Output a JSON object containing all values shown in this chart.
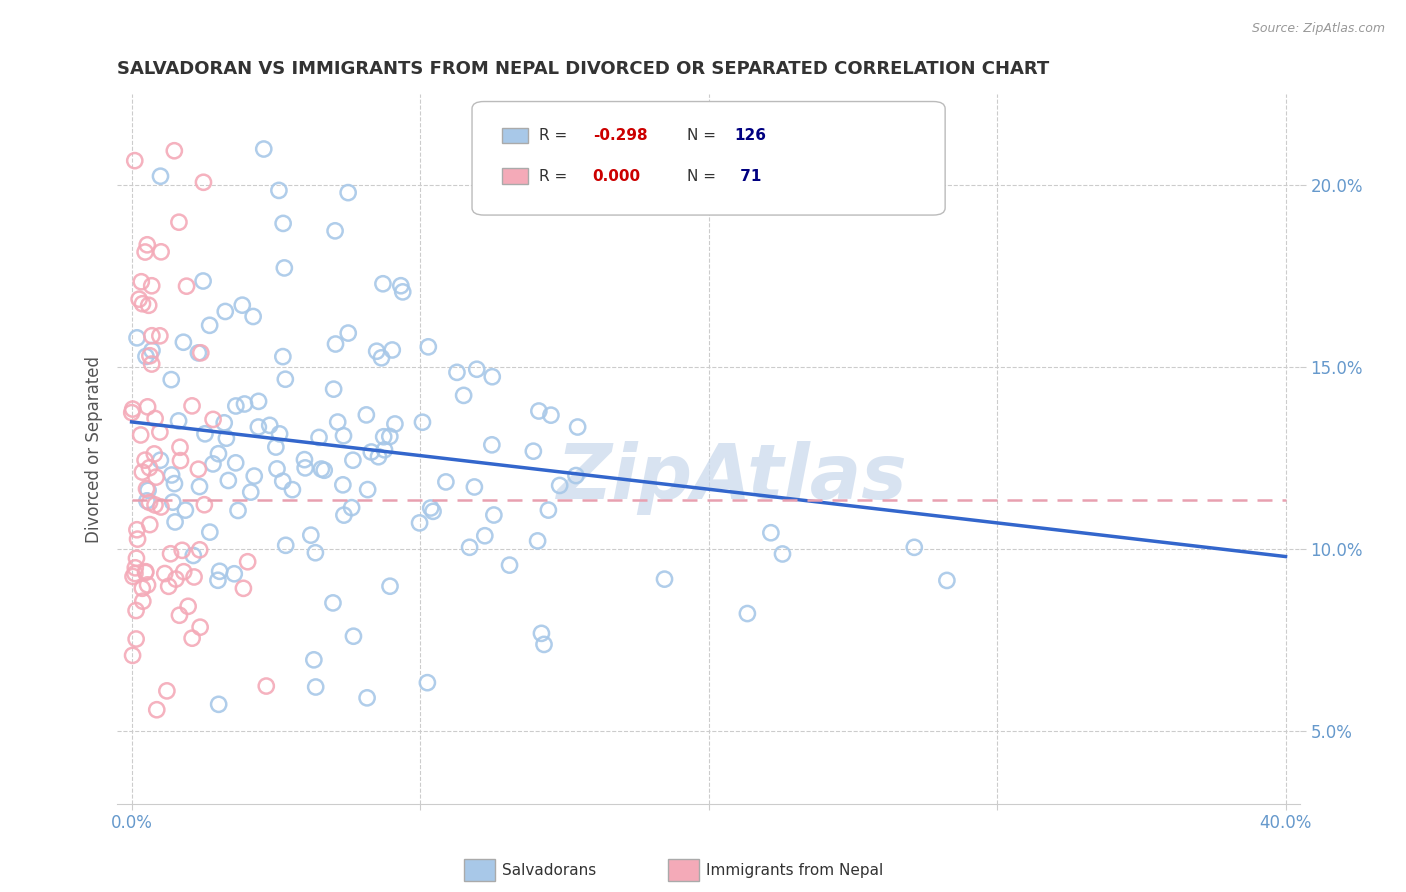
{
  "title": "SALVADORAN VS IMMIGRANTS FROM NEPAL DIVORCED OR SEPARATED CORRELATION CHART",
  "source": "Source: ZipAtlas.com",
  "ylabel": "Divorced or Separated",
  "xlim": [
    -0.005,
    0.405
  ],
  "ylim": [
    0.03,
    0.225
  ],
  "xticks": [
    0.0,
    0.1,
    0.2,
    0.3,
    0.4
  ],
  "xtick_labels": [
    "0.0%",
    "",
    "",
    "",
    "40.0%"
  ],
  "yticks": [
    0.05,
    0.1,
    0.15,
    0.2
  ],
  "ytick_labels": [
    "5.0%",
    "10.0%",
    "15.0%",
    "20.0%"
  ],
  "blue_line_x": [
    0.0,
    0.4
  ],
  "blue_line_y": [
    0.135,
    0.098
  ],
  "pink_line_x": [
    0.0,
    0.4
  ],
  "pink_line_y": [
    0.1135,
    0.1135
  ],
  "blue_dot_color": "#a8c8e8",
  "pink_dot_color": "#f4aab8",
  "blue_line_color": "#3366cc",
  "pink_line_color": "#e8a0b0",
  "background_color": "#ffffff",
  "grid_color": "#cccccc",
  "title_color": "#333333",
  "axis_label_color": "#6699cc",
  "watermark_color": "#c8d8ec",
  "legend_r_color": "#cc0000",
  "legend_n_color": "#000080",
  "legend_text_color": "#333333"
}
